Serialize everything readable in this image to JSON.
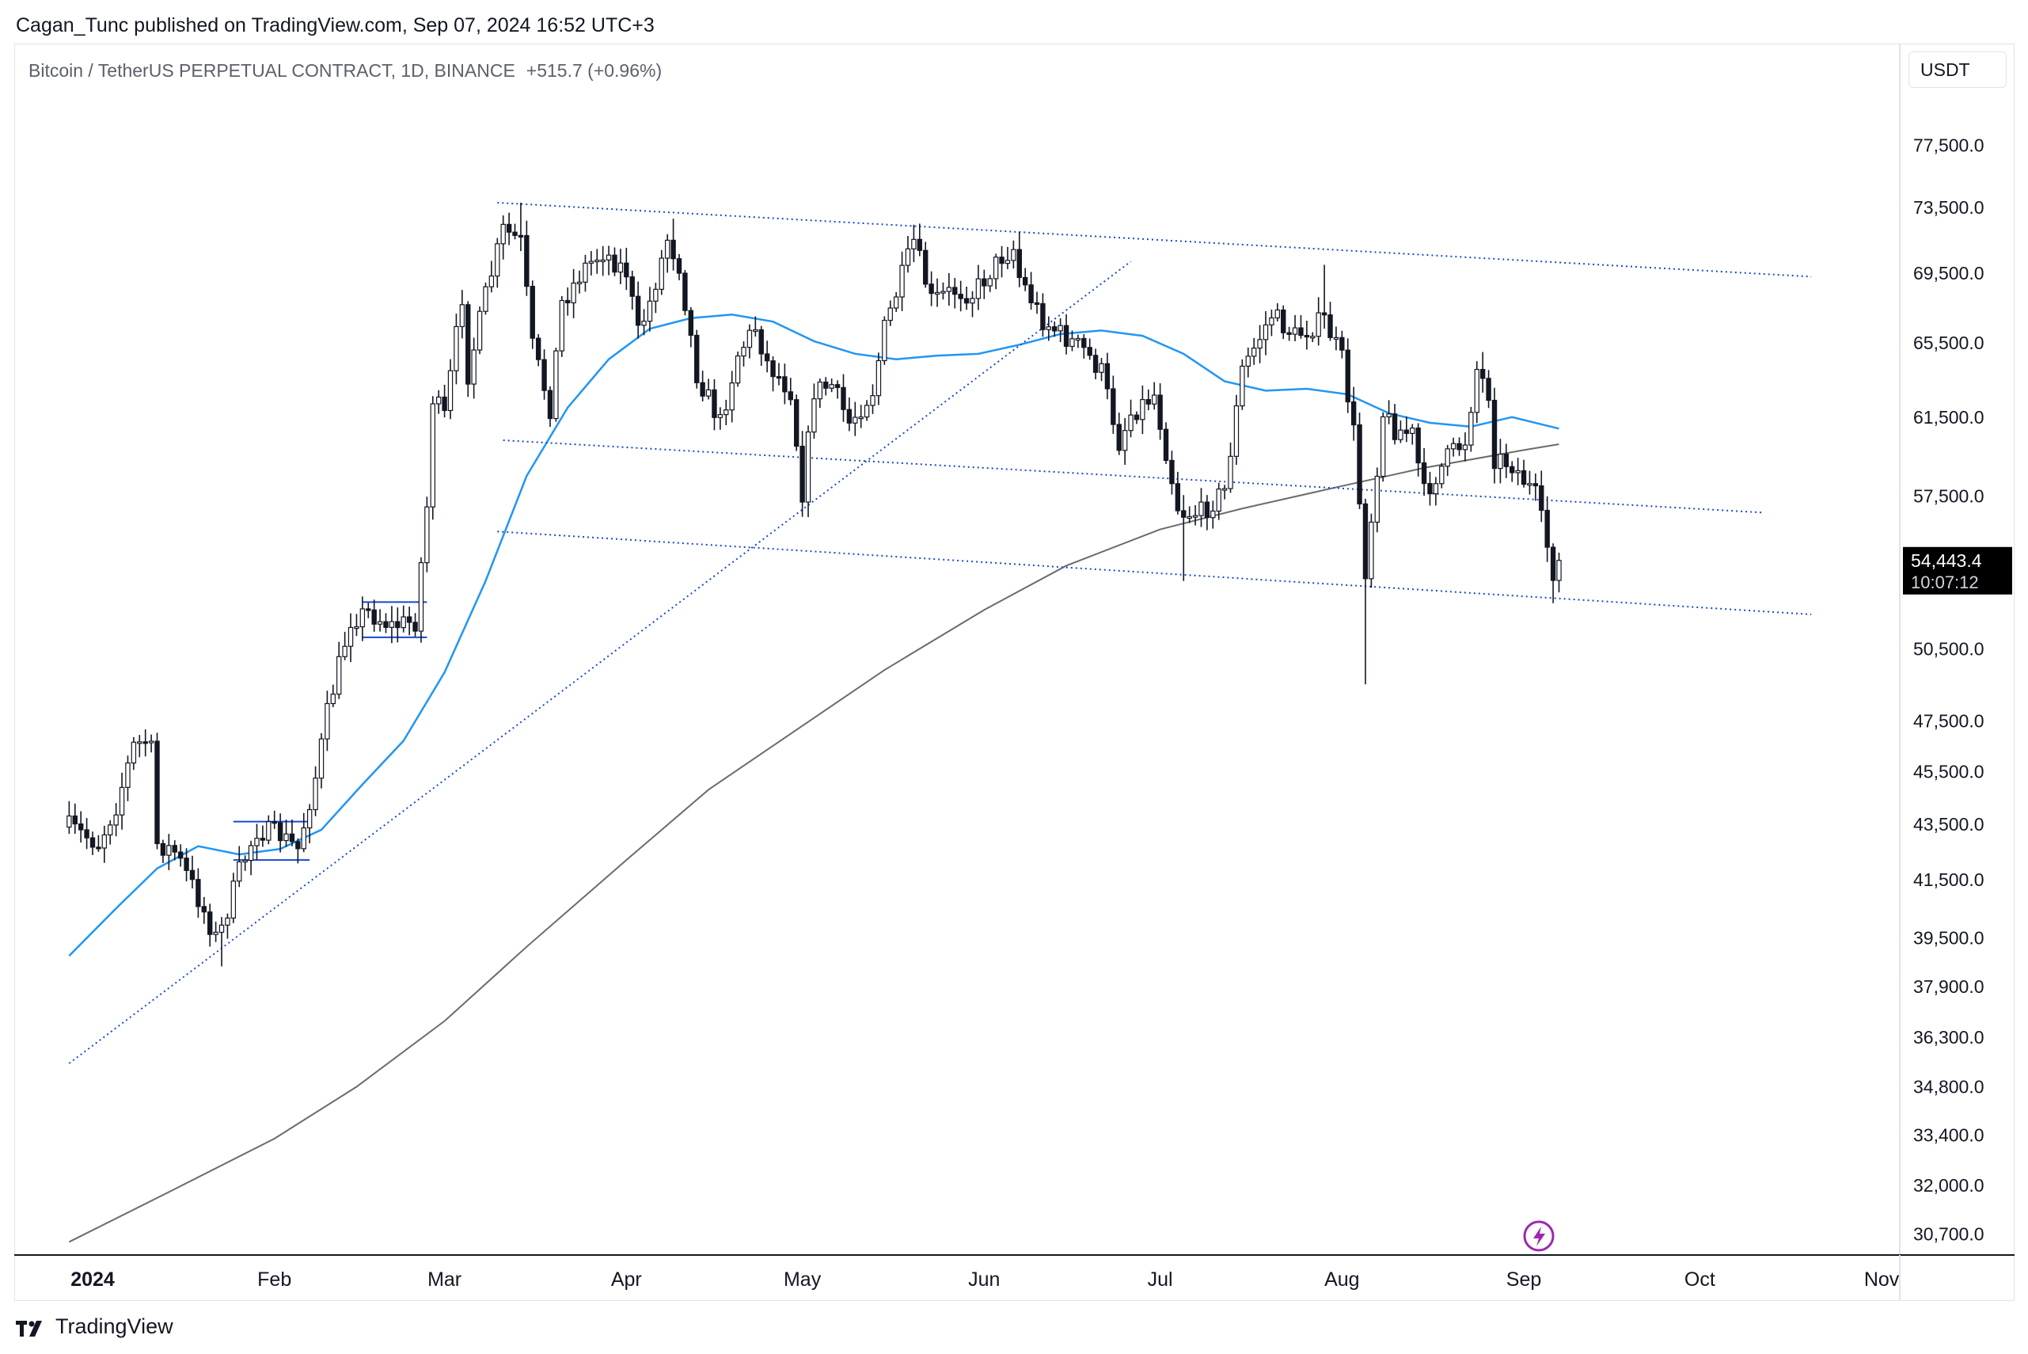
{
  "publisher_line": "Cagan_Tunc published on TradingView.com, Sep 07, 2024 16:52 UTC+3",
  "brand": {
    "name": "TradingView",
    "logo_icon": "tradingview-logo-icon"
  },
  "legend": {
    "symbol": "Bitcoin / TetherUS PERPETUAL CONTRACT, 1D, BINANCE",
    "change": "+515.7 (+0.96%)"
  },
  "currency_button": "USDT",
  "flash_icon": "lightning-icon",
  "colors": {
    "candle_up": "#ffffff",
    "candle_down": "#131722",
    "wick": "#131722",
    "ma_short": "#2196f3",
    "ma_long": "#6b6b6b",
    "trendline": "#1848cc",
    "last_price_bg": "#000000",
    "axis_text": "#131722"
  },
  "chart_data": {
    "type": "candlestick",
    "price_axis": {
      "ticks": [
        77500,
        73500,
        69500,
        65500,
        61500,
        57500,
        50500,
        47500,
        45500,
        43500,
        41500,
        39500,
        37900,
        36300,
        34800,
        33400,
        32000,
        30700
      ],
      "tick_labels": [
        "77,500.0",
        "73,500.0",
        "69,500.0",
        "65,500.0",
        "61,500.0",
        "57,500.0",
        "50,500.0",
        "47,500.0",
        "45,500.0",
        "43,500.0",
        "41,500.0",
        "39,500.0",
        "37,900.0",
        "36,300.0",
        "34,800.0",
        "33,400.0",
        "32,000.0",
        "30,700.0"
      ],
      "scale": "log"
    },
    "time_axis": {
      "labels": [
        "2024",
        "Feb",
        "Mar",
        "Apr",
        "May",
        "Jun",
        "Jul",
        "Aug",
        "Sep",
        "Oct",
        "Nov"
      ],
      "dates": [
        "2024-01-01",
        "2024-02-01",
        "2024-03-01",
        "2024-04-01",
        "2024-05-01",
        "2024-06-01",
        "2024-07-01",
        "2024-08-01",
        "2024-09-01",
        "2024-10-01",
        "2024-11-01"
      ]
    },
    "last_price": {
      "value": 54443.4,
      "label": "54,443.4",
      "countdown": "10:07:12"
    },
    "close_path": [
      [
        "2023-12-28",
        43400
      ],
      [
        "2024-01-02",
        42800
      ],
      [
        "2024-01-05",
        44200
      ],
      [
        "2024-01-08",
        46500
      ],
      [
        "2024-01-10",
        46700
      ],
      [
        "2024-01-11",
        46300
      ],
      [
        "2024-01-12",
        42800
      ],
      [
        "2024-01-15",
        42500
      ],
      [
        "2024-01-18",
        41300
      ],
      [
        "2024-01-22",
        39500
      ],
      [
        "2024-01-23",
        39800
      ],
      [
        "2024-01-26",
        41800
      ],
      [
        "2024-01-29",
        43300
      ],
      [
        "2024-02-02",
        43100
      ],
      [
        "2024-02-05",
        42600
      ],
      [
        "2024-02-08",
        45300
      ],
      [
        "2024-02-10",
        47800
      ],
      [
        "2024-02-12",
        49800
      ],
      [
        "2024-02-14",
        51800
      ],
      [
        "2024-02-17",
        52100
      ],
      [
        "2024-02-21",
        51500
      ],
      [
        "2024-02-25",
        51700
      ],
      [
        "2024-02-27",
        57000
      ],
      [
        "2024-02-28",
        62500
      ],
      [
        "2024-03-01",
        61500
      ],
      [
        "2024-03-04",
        68200
      ],
      [
        "2024-03-05",
        63800
      ],
      [
        "2024-03-08",
        68200
      ],
      [
        "2024-03-11",
        72100
      ],
      [
        "2024-03-14",
        71400
      ],
      [
        "2024-03-16",
        65300
      ],
      [
        "2024-03-19",
        62000
      ],
      [
        "2024-03-21",
        67800
      ],
      [
        "2024-03-25",
        69900
      ],
      [
        "2024-03-28",
        70800
      ],
      [
        "2024-04-01",
        69600
      ],
      [
        "2024-04-03",
        66000
      ],
      [
        "2024-04-05",
        67800
      ],
      [
        "2024-04-08",
        71600
      ],
      [
        "2024-04-10",
        70000
      ],
      [
        "2024-04-13",
        63800
      ],
      [
        "2024-04-17",
        61200
      ],
      [
        "2024-04-20",
        64900
      ],
      [
        "2024-04-23",
        66400
      ],
      [
        "2024-04-25",
        64400
      ],
      [
        "2024-04-29",
        62900
      ],
      [
        "2024-05-01",
        57700
      ],
      [
        "2024-05-03",
        62900
      ],
      [
        "2024-05-06",
        63200
      ],
      [
        "2024-05-09",
        61200
      ],
      [
        "2024-05-13",
        62900
      ],
      [
        "2024-05-15",
        66300
      ],
      [
        "2024-05-20",
        71400
      ],
      [
        "2024-05-23",
        67900
      ],
      [
        "2024-05-27",
        68500
      ],
      [
        "2024-05-30",
        68300
      ],
      [
        "2024-06-04",
        70500
      ],
      [
        "2024-06-06",
        71000
      ],
      [
        "2024-06-07",
        69300
      ],
      [
        "2024-06-11",
        66800
      ],
      [
        "2024-06-14",
        66000
      ],
      [
        "2024-06-18",
        65100
      ],
      [
        "2024-06-21",
        63900
      ],
      [
        "2024-06-24",
        60200
      ],
      [
        "2024-06-26",
        61700
      ],
      [
        "2024-06-30",
        62700
      ],
      [
        "2024-07-04",
        57000
      ],
      [
        "2024-07-05",
        56700
      ],
      [
        "2024-07-08",
        56700
      ],
      [
        "2024-07-12",
        57800
      ],
      [
        "2024-07-15",
        64000
      ],
      [
        "2024-07-20",
        67100
      ],
      [
        "2024-07-24",
        65900
      ],
      [
        "2024-07-29",
        66800
      ],
      [
        "2024-08-01",
        64600
      ],
      [
        "2024-08-03",
        60700
      ],
      [
        "2024-08-05",
        54000
      ],
      [
        "2024-08-08",
        61700
      ],
      [
        "2024-08-10",
        60900
      ],
      [
        "2024-08-13",
        60600
      ],
      [
        "2024-08-15",
        57600
      ],
      [
        "2024-08-19",
        59400
      ],
      [
        "2024-08-22",
        60300
      ],
      [
        "2024-08-24",
        64100
      ],
      [
        "2024-08-26",
        62800
      ],
      [
        "2024-08-27",
        59400
      ],
      [
        "2024-08-30",
        59100
      ],
      [
        "2024-09-03",
        57500
      ],
      [
        "2024-09-06",
        53950
      ],
      [
        "2024-09-07",
        54443
      ]
    ],
    "ma_short_path": [
      [
        "2023-12-28",
        38900
      ],
      [
        "2024-01-05",
        40500
      ],
      [
        "2024-01-12",
        41900
      ],
      [
        "2024-01-19",
        42700
      ],
      [
        "2024-01-26",
        42400
      ],
      [
        "2024-02-02",
        42600
      ],
      [
        "2024-02-09",
        43300
      ],
      [
        "2024-02-16",
        45000
      ],
      [
        "2024-02-23",
        46700
      ],
      [
        "2024-03-01",
        49500
      ],
      [
        "2024-03-08",
        53500
      ],
      [
        "2024-03-15",
        58500
      ],
      [
        "2024-03-22",
        62000
      ],
      [
        "2024-03-29",
        64600
      ],
      [
        "2024-04-05",
        66300
      ],
      [
        "2024-04-12",
        66900
      ],
      [
        "2024-04-19",
        67100
      ],
      [
        "2024-04-26",
        66700
      ],
      [
        "2024-05-03",
        65600
      ],
      [
        "2024-05-10",
        64900
      ],
      [
        "2024-05-17",
        64600
      ],
      [
        "2024-05-24",
        64800
      ],
      [
        "2024-05-31",
        64900
      ],
      [
        "2024-06-07",
        65400
      ],
      [
        "2024-06-14",
        66000
      ],
      [
        "2024-06-21",
        66200
      ],
      [
        "2024-06-28",
        65900
      ],
      [
        "2024-07-05",
        64900
      ],
      [
        "2024-07-12",
        63400
      ],
      [
        "2024-07-19",
        62900
      ],
      [
        "2024-07-26",
        63000
      ],
      [
        "2024-08-02",
        62700
      ],
      [
        "2024-08-09",
        61700
      ],
      [
        "2024-08-16",
        61200
      ],
      [
        "2024-08-23",
        61000
      ],
      [
        "2024-08-30",
        61500
      ],
      [
        "2024-09-07",
        60900
      ]
    ],
    "ma_long_path": [
      [
        "2023-12-28",
        30500
      ],
      [
        "2024-01-15",
        31900
      ],
      [
        "2024-02-01",
        33300
      ],
      [
        "2024-02-15",
        34800
      ],
      [
        "2024-03-01",
        36800
      ],
      [
        "2024-03-15",
        39200
      ],
      [
        "2024-04-01",
        42200
      ],
      [
        "2024-04-15",
        44800
      ],
      [
        "2024-05-01",
        47300
      ],
      [
        "2024-05-15",
        49600
      ],
      [
        "2024-06-01",
        52200
      ],
      [
        "2024-06-15",
        54200
      ],
      [
        "2024-07-01",
        55900
      ],
      [
        "2024-07-15",
        56900
      ],
      [
        "2024-08-01",
        58000
      ],
      [
        "2024-08-15",
        58900
      ],
      [
        "2024-09-01",
        59800
      ],
      [
        "2024-09-07",
        60100
      ]
    ],
    "lows": [
      [
        "2024-01-23",
        38550
      ],
      [
        "2024-05-01",
        56500
      ],
      [
        "2024-07-05",
        53500
      ],
      [
        "2024-08-05",
        49000
      ],
      [
        "2024-09-06",
        52500
      ]
    ],
    "highs": [
      [
        "2024-03-14",
        73800
      ],
      [
        "2024-04-09",
        72800
      ],
      [
        "2024-05-21",
        71900
      ],
      [
        "2024-06-07",
        72000
      ],
      [
        "2024-07-29",
        70000
      ],
      [
        "2024-08-25",
        65000
      ]
    ],
    "drawings": [
      {
        "kind": "dotted-line",
        "from": [
          "2024-03-10",
          73800
        ],
        "to": [
          "2024-10-20",
          69300
        ]
      },
      {
        "kind": "dotted-line",
        "from": [
          "2023-12-28",
          35500
        ],
        "to": [
          "2024-06-26",
          70200
        ]
      },
      {
        "kind": "dotted-line",
        "from": [
          "2024-03-11",
          60300
        ],
        "to": [
          "2024-10-12",
          56700
        ]
      },
      {
        "kind": "dotted-line",
        "from": [
          "2024-03-10",
          55800
        ],
        "to": [
          "2024-10-20",
          52000
        ]
      },
      {
        "kind": "box",
        "from": [
          "2024-02-16",
          52550
        ],
        "to": [
          "2024-02-27",
          51000
        ]
      },
      {
        "kind": "box",
        "from": [
          "2024-01-25",
          43600
        ],
        "to": [
          "2024-02-07",
          42200
        ]
      }
    ]
  }
}
